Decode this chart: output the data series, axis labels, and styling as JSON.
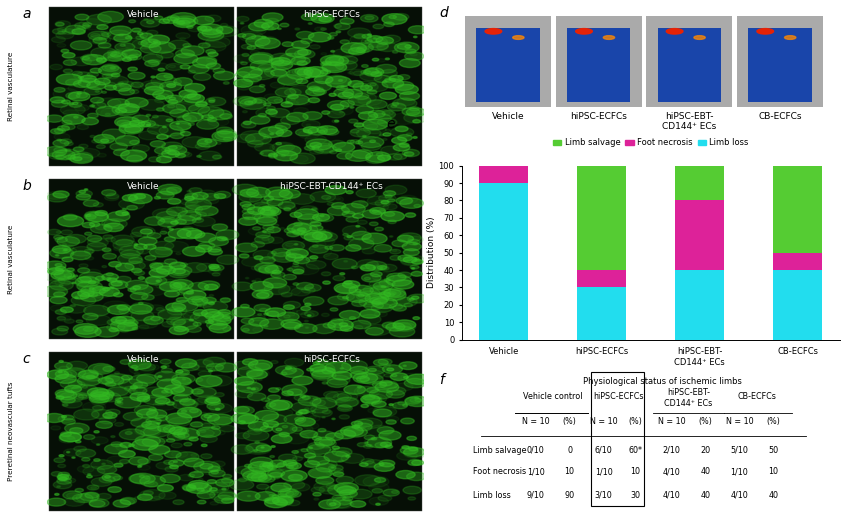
{
  "limb_salvage": [
    0,
    60,
    20,
    50
  ],
  "foot_necrosis": [
    10,
    10,
    40,
    10
  ],
  "limb_loss": [
    90,
    30,
    40,
    40
  ],
  "color_salvage": "#55cc33",
  "color_necrosis": "#dd2299",
  "color_loss": "#22ddee",
  "ylabel": "Distribution (%)",
  "yticks": [
    0,
    10,
    20,
    30,
    40,
    50,
    60,
    70,
    80,
    90,
    100
  ],
  "retinal_vasculature_a": "Retinal vasculature",
  "retinal_vasculature_b": "Retinal vasculature",
  "preretinal_label": "Preretinal neovascular tufts",
  "title_a1": "Vehicle",
  "title_a2": "hiPSC-ECFCs",
  "title_b1": "Vehicle",
  "title_b2": "hiPSC-EBT-CD144⁺ ECs",
  "title_c1": "Vehicle",
  "title_c2": "hiPSC-ECFCs",
  "title_d_labels": [
    "Vehicle",
    "hiPSC-ECFCs",
    "hiPSC-EBT-\nCD144⁺ ECs",
    "CB-ECFCs"
  ],
  "table_title": "Physiological status of ischemic limbs",
  "bg_color": "#ffffff",
  "font_size_small": 6.5,
  "font_size_label": 10,
  "bar_width": 0.5
}
